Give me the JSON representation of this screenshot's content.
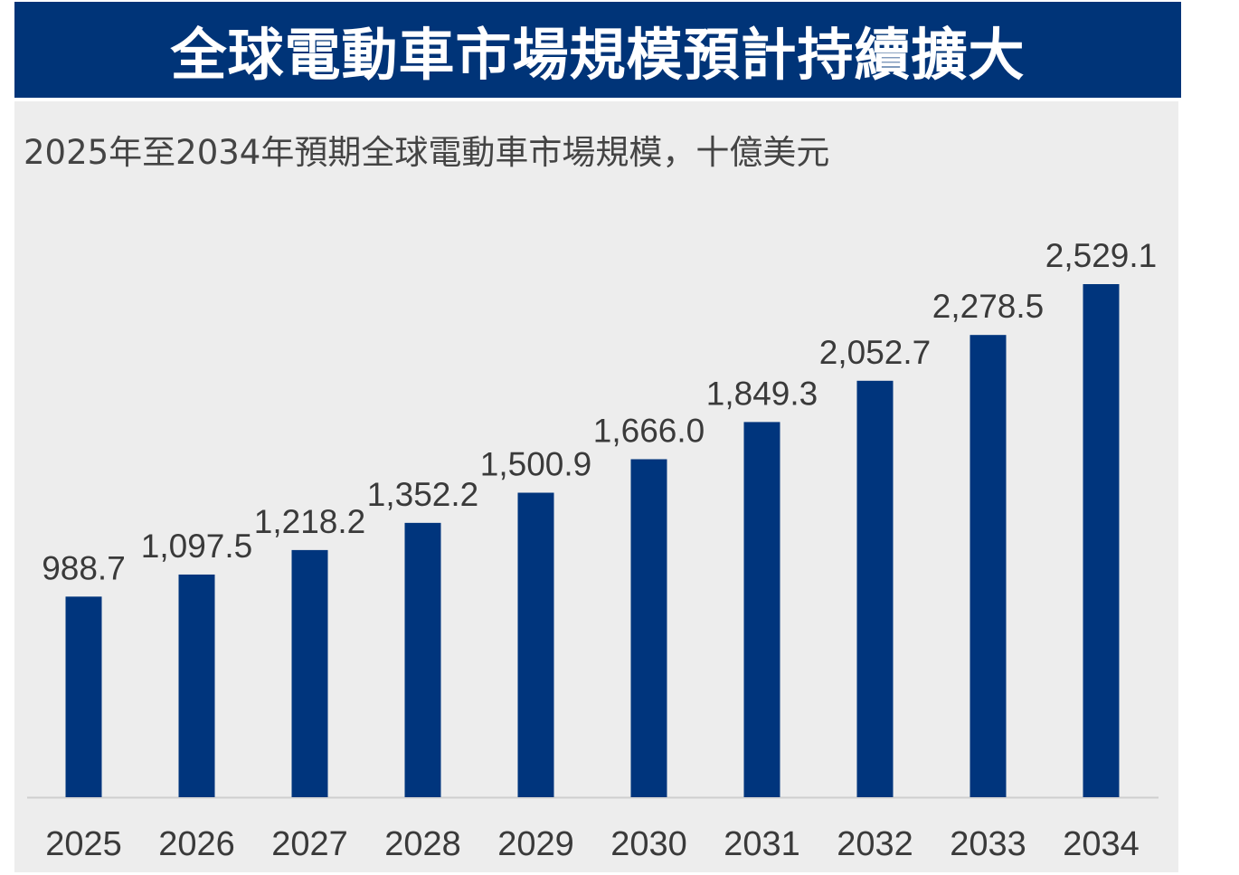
{
  "header": {
    "title": "全球電動車市場規模預計持續擴大"
  },
  "colors": {
    "header_bg": "#003478",
    "bar": "#00357d",
    "panel_bg": "#ededed"
  },
  "chart_data": {
    "type": "bar",
    "title": "2025年至2034年預期全球電動車市場規模，十億美元",
    "categories": [
      "2025",
      "2026",
      "2027",
      "2028",
      "2029",
      "2030",
      "2031",
      "2032",
      "2033",
      "2034"
    ],
    "values": [
      988.7,
      1097.5,
      1218.2,
      1352.2,
      1500.9,
      1666.0,
      1849.3,
      2052.7,
      2278.5,
      2529.1
    ],
    "value_labels": [
      "988.7",
      "1,097.5",
      "1,218.2",
      "1,352.2",
      "1,500.9",
      "1,666.0",
      "1,849.3",
      "2,052.7",
      "2,278.5",
      "2,529.1"
    ],
    "ylim": [
      0,
      2529.1
    ],
    "grid": false,
    "legend": "none"
  }
}
